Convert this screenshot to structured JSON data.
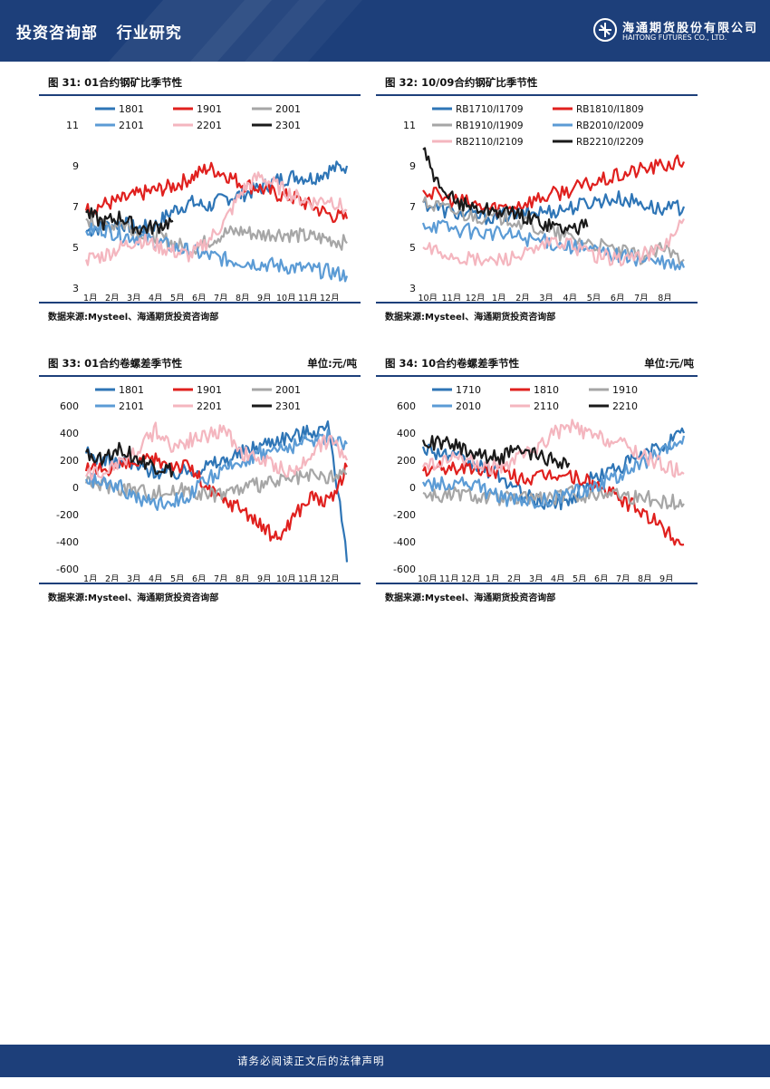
{
  "header": {
    "dept": "投资咨询部",
    "section": "行业研究"
  },
  "logo": {
    "name_cn": "海通期货股份有限公司",
    "name_en": "HAITONG FUTURES CO., LTD."
  },
  "colors": {
    "navy": "#1d3f7a",
    "c1": "#2e75b6",
    "c2": "#e0201e",
    "c3": "#a6a6a6",
    "c4": "#5b9bd5",
    "c5": "#f4b6bf",
    "c6": "#1a1a1a"
  },
  "figures": [
    {
      "title": "图 31:   01合约钢矿比季节性",
      "unit": "",
      "source": "数据来源:Mysteel、海通期货投资咨询部"
    },
    {
      "title": "图 32:   10/09合约钢矿比季节性",
      "unit": "",
      "source": "数据来源:Mysteel、海通期货投资咨询部"
    },
    {
      "title": "图 33:   01合约卷螺差季节性",
      "unit": "单位:元/吨",
      "source": "数据来源:Mysteel、海通期货投资咨询部"
    },
    {
      "title": "图 34:   10合约卷螺差季节性",
      "unit": "单位:元/吨",
      "source": "数据来源:Mysteel、海通期货投资咨询部"
    }
  ],
  "chart_data": [
    {
      "type": "line",
      "x_labels": [
        "1月",
        "2月",
        "3月",
        "4月",
        "5月",
        "6月",
        "7月",
        "8月",
        "9月",
        "10月",
        "11月",
        "12月"
      ],
      "yticks": [
        "3",
        "5",
        "7",
        "9",
        "11"
      ],
      "ylim": [
        3,
        11
      ],
      "series": [
        {
          "name": "1801",
          "start": 5.8,
          "end": 9.0,
          "pts": [
            5.8,
            6.0,
            6.2,
            5.9,
            6.1,
            6.8,
            7.2,
            7.0,
            7.4,
            7.6,
            7.9,
            8.3,
            8.5,
            8.4,
            8.8,
            9.0
          ]
        },
        {
          "name": "1901",
          "start": 6.8,
          "end": 6.4,
          "pts": [
            6.8,
            7.1,
            7.3,
            7.6,
            7.8,
            8.0,
            8.4,
            8.9,
            8.6,
            8.1,
            7.9,
            7.6,
            7.4,
            7.0,
            6.6,
            6.4
          ]
        },
        {
          "name": "2001",
          "start": 6.4,
          "end": 5.2,
          "pts": [
            6.4,
            6.0,
            6.2,
            5.8,
            5.6,
            5.2,
            4.9,
            5.3,
            5.7,
            5.8,
            5.6,
            5.7,
            5.6,
            5.5,
            5.4,
            5.2
          ]
        },
        {
          "name": "2101",
          "start": 5.8,
          "end": 3.6,
          "pts": [
            5.8,
            5.9,
            5.6,
            5.5,
            5.3,
            5.0,
            4.8,
            4.6,
            4.4,
            4.3,
            4.2,
            4.1,
            4.0,
            3.9,
            3.8,
            3.6
          ]
        },
        {
          "name": "2201",
          "start": 4.4,
          "end": 6.8,
          "pts": [
            4.4,
            4.6,
            5.0,
            5.4,
            5.1,
            4.8,
            4.6,
            5.3,
            6.3,
            7.8,
            8.5,
            8.0,
            7.5,
            7.2,
            7.4,
            6.8
          ]
        },
        {
          "name": "2301",
          "start": 6.7,
          "end": 6.3,
          "pts": [
            6.7,
            6.2,
            6.5,
            5.9,
            6.0,
            6.3
          ]
        }
      ]
    },
    {
      "type": "line",
      "x_labels": [
        "10月",
        "11月",
        "12月",
        "1月",
        "2月",
        "3月",
        "4月",
        "5月",
        "6月",
        "7月",
        "8月"
      ],
      "yticks": [
        "3",
        "5",
        "7",
        "9",
        "11"
      ],
      "ylim": [
        3,
        11
      ],
      "series": [
        {
          "name": "RB1710/I1709",
          "start": 7.2,
          "end": 7.0,
          "pts": [
            7.2,
            6.8,
            6.6,
            6.5,
            6.6,
            6.7,
            6.8,
            7.0,
            7.3,
            7.4,
            7.2,
            6.8,
            7.0
          ]
        },
        {
          "name": "RB1810/I1809",
          "start": 7.8,
          "end": 9.2,
          "pts": [
            7.8,
            7.4,
            7.2,
            6.9,
            7.0,
            7.3,
            7.6,
            7.9,
            8.2,
            8.5,
            8.8,
            9.0,
            9.2
          ]
        },
        {
          "name": "RB1910/I1909",
          "start": 7.2,
          "end": 4.4,
          "pts": [
            7.2,
            6.9,
            6.6,
            6.5,
            6.4,
            6.0,
            5.7,
            5.4,
            5.1,
            4.8,
            4.5,
            4.9,
            4.4
          ]
        },
        {
          "name": "RB2010/I2009",
          "start": 6.2,
          "end": 4.0,
          "pts": [
            6.2,
            6.0,
            5.8,
            5.7,
            5.6,
            5.4,
            5.2,
            5.0,
            4.8,
            4.6,
            4.4,
            4.2,
            4.0
          ]
        },
        {
          "name": "RB2110/I2109",
          "start": 5.0,
          "end": 6.4,
          "pts": [
            5.0,
            4.7,
            4.4,
            4.3,
            4.5,
            4.7,
            5.3,
            5.0,
            4.6,
            4.4,
            4.6,
            4.9,
            6.4
          ]
        },
        {
          "name": "RB2210/I2209",
          "start": 9.8,
          "end": 6.0,
          "pts": [
            9.8,
            7.6,
            7.2,
            6.9,
            6.8,
            6.6,
            6.4,
            6.1,
            5.9,
            6.0
          ]
        }
      ]
    },
    {
      "type": "line",
      "x_labels": [
        "1月",
        "2月",
        "3月",
        "4月",
        "5月",
        "6月",
        "7月",
        "8月",
        "9月",
        "10月",
        "11月",
        "12月"
      ],
      "yticks": [
        "600",
        "400",
        "200",
        "0",
        "-200",
        "-400",
        "-600"
      ],
      "ylim": [
        -600,
        600
      ],
      "series": [
        {
          "name": "1801",
          "start": 250,
          "end": -550,
          "pts": [
            250,
            200,
            180,
            150,
            120,
            100,
            130,
            160,
            200,
            260,
            310,
            360,
            380,
            420,
            440,
            -550
          ]
        },
        {
          "name": "1901",
          "start": 120,
          "end": 150,
          "pts": [
            120,
            140,
            160,
            180,
            200,
            170,
            150,
            -20,
            -100,
            -150,
            -280,
            -380,
            -200,
            -60,
            -120,
            150
          ]
        },
        {
          "name": "2001",
          "start": 30,
          "end": 100,
          "pts": [
            30,
            20,
            0,
            -20,
            -40,
            -30,
            -10,
            -60,
            -30,
            -10,
            20,
            40,
            60,
            80,
            70,
            100
          ]
        },
        {
          "name": "2101",
          "start": 60,
          "end": 320,
          "pts": [
            60,
            40,
            0,
            -80,
            -120,
            -100,
            -50,
            60,
            120,
            200,
            250,
            280,
            300,
            350,
            380,
            320
          ]
        },
        {
          "name": "2201",
          "start": 80,
          "end": 200,
          "pts": [
            80,
            120,
            200,
            280,
            420,
            300,
            350,
            380,
            420,
            250,
            200,
            150,
            100,
            280,
            350,
            200
          ]
        },
        {
          "name": "2301",
          "start": 260,
          "end": 120,
          "pts": [
            260,
            220,
            300,
            200,
            150,
            120
          ]
        }
      ]
    },
    {
      "type": "line",
      "x_labels": [
        "10月",
        "11月",
        "12月",
        "1月",
        "2月",
        "3月",
        "4月",
        "5月",
        "6月",
        "7月",
        "8月",
        "9月"
      ],
      "yticks": [
        "600",
        "400",
        "200",
        "0",
        "-200",
        "-400",
        "-600"
      ],
      "ylim": [
        -600,
        600
      ],
      "series": [
        {
          "name": "1710",
          "start": 300,
          "end": 400,
          "pts": [
            300,
            250,
            200,
            150,
            100,
            -20,
            -100,
            -120,
            -80,
            60,
            120,
            180,
            250,
            320,
            400
          ]
        },
        {
          "name": "1810",
          "start": 120,
          "end": -420,
          "pts": [
            120,
            140,
            150,
            130,
            120,
            80,
            60,
            100,
            80,
            40,
            -40,
            -120,
            -200,
            -320,
            -420
          ]
        },
        {
          "name": "1910",
          "start": -40,
          "end": -120,
          "pts": [
            -40,
            -60,
            -40,
            -60,
            -80,
            -90,
            -60,
            -80,
            -40,
            -60,
            -20,
            -60,
            -80,
            -100,
            -120
          ]
        },
        {
          "name": "2010",
          "start": 40,
          "end": 380,
          "pts": [
            40,
            20,
            40,
            0,
            -60,
            -100,
            -120,
            -80,
            -40,
            0,
            60,
            120,
            200,
            260,
            380
          ]
        },
        {
          "name": "2110",
          "start": 150,
          "end": 100,
          "pts": [
            150,
            180,
            220,
            160,
            150,
            200,
            280,
            400,
            450,
            380,
            350,
            300,
            220,
            160,
            100
          ]
        },
        {
          "name": "2210",
          "start": 350,
          "end": 180,
          "pts": [
            350,
            320,
            300,
            250,
            220,
            260,
            240,
            200,
            180
          ]
        }
      ]
    }
  ]
}
